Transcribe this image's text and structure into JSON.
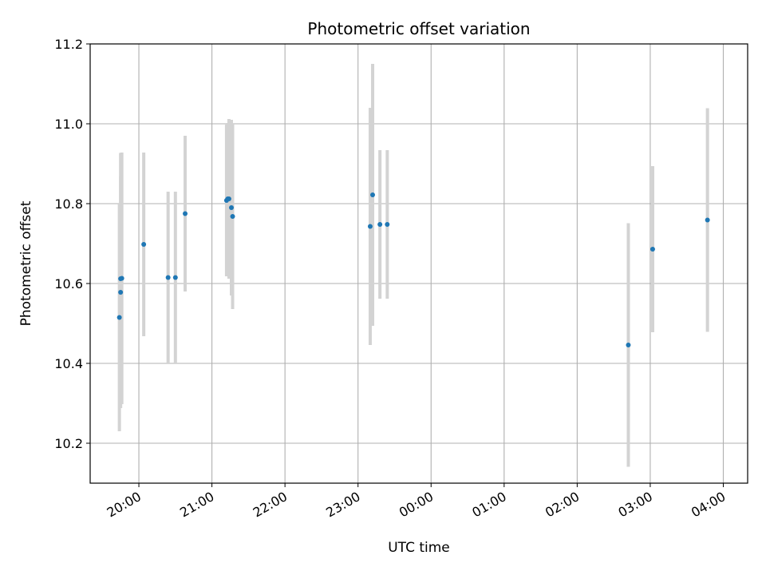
{
  "chart_data": {
    "type": "scatter",
    "title": "Photometric offset variation",
    "xlabel": "UTC time",
    "ylabel": "Photometric offset",
    "x_axis": {
      "kind": "time",
      "range": [
        "19:20",
        "04:20"
      ],
      "ticks": [
        "20:00",
        "21:00",
        "22:00",
        "23:00",
        "00:00",
        "01:00",
        "02:00",
        "03:00",
        "04:00"
      ]
    },
    "ylim": [
      10.1,
      11.2
    ],
    "yticks": [
      10.2,
      10.4,
      10.6,
      10.8,
      11.0,
      11.2
    ],
    "grid": true,
    "colors": {
      "point": "#1f77b4",
      "errorbar": "#d3d3d3",
      "grid": "#b0b0b0"
    },
    "points": [
      {
        "x": "19:44",
        "y": 10.515,
        "err": 0.285
      },
      {
        "x": "19:45",
        "y": 10.578,
        "err": 0.29
      },
      {
        "x": "19:45",
        "y": 10.612,
        "err": 0.315
      },
      {
        "x": "19:46",
        "y": 10.613,
        "err": 0.315
      },
      {
        "x": "20:04",
        "y": 10.698,
        "err": 0.23
      },
      {
        "x": "20:24",
        "y": 10.615,
        "err": 0.215
      },
      {
        "x": "20:30",
        "y": 10.615,
        "err": 0.215
      },
      {
        "x": "20:38",
        "y": 10.775,
        "err": 0.195
      },
      {
        "x": "21:12",
        "y": 10.808,
        "err": 0.19
      },
      {
        "x": "21:13",
        "y": 10.812,
        "err": 0.19
      },
      {
        "x": "21:14",
        "y": 10.812,
        "err": 0.2
      },
      {
        "x": "21:16",
        "y": 10.79,
        "err": 0.22
      },
      {
        "x": "21:17",
        "y": 10.768,
        "err": 0.232
      },
      {
        "x": "23:10",
        "y": 10.743,
        "err": 0.297
      },
      {
        "x": "23:12",
        "y": 10.822,
        "err": 0.328
      },
      {
        "x": "23:18",
        "y": 10.748,
        "err": 0.186
      },
      {
        "x": "23:24",
        "y": 10.748,
        "err": 0.186
      },
      {
        "x": "02:42",
        "y": 10.446,
        "err": 0.305
      },
      {
        "x": "03:02",
        "y": 10.686,
        "err": 0.208
      },
      {
        "x": "03:47",
        "y": 10.759,
        "err": 0.28
      }
    ]
  }
}
